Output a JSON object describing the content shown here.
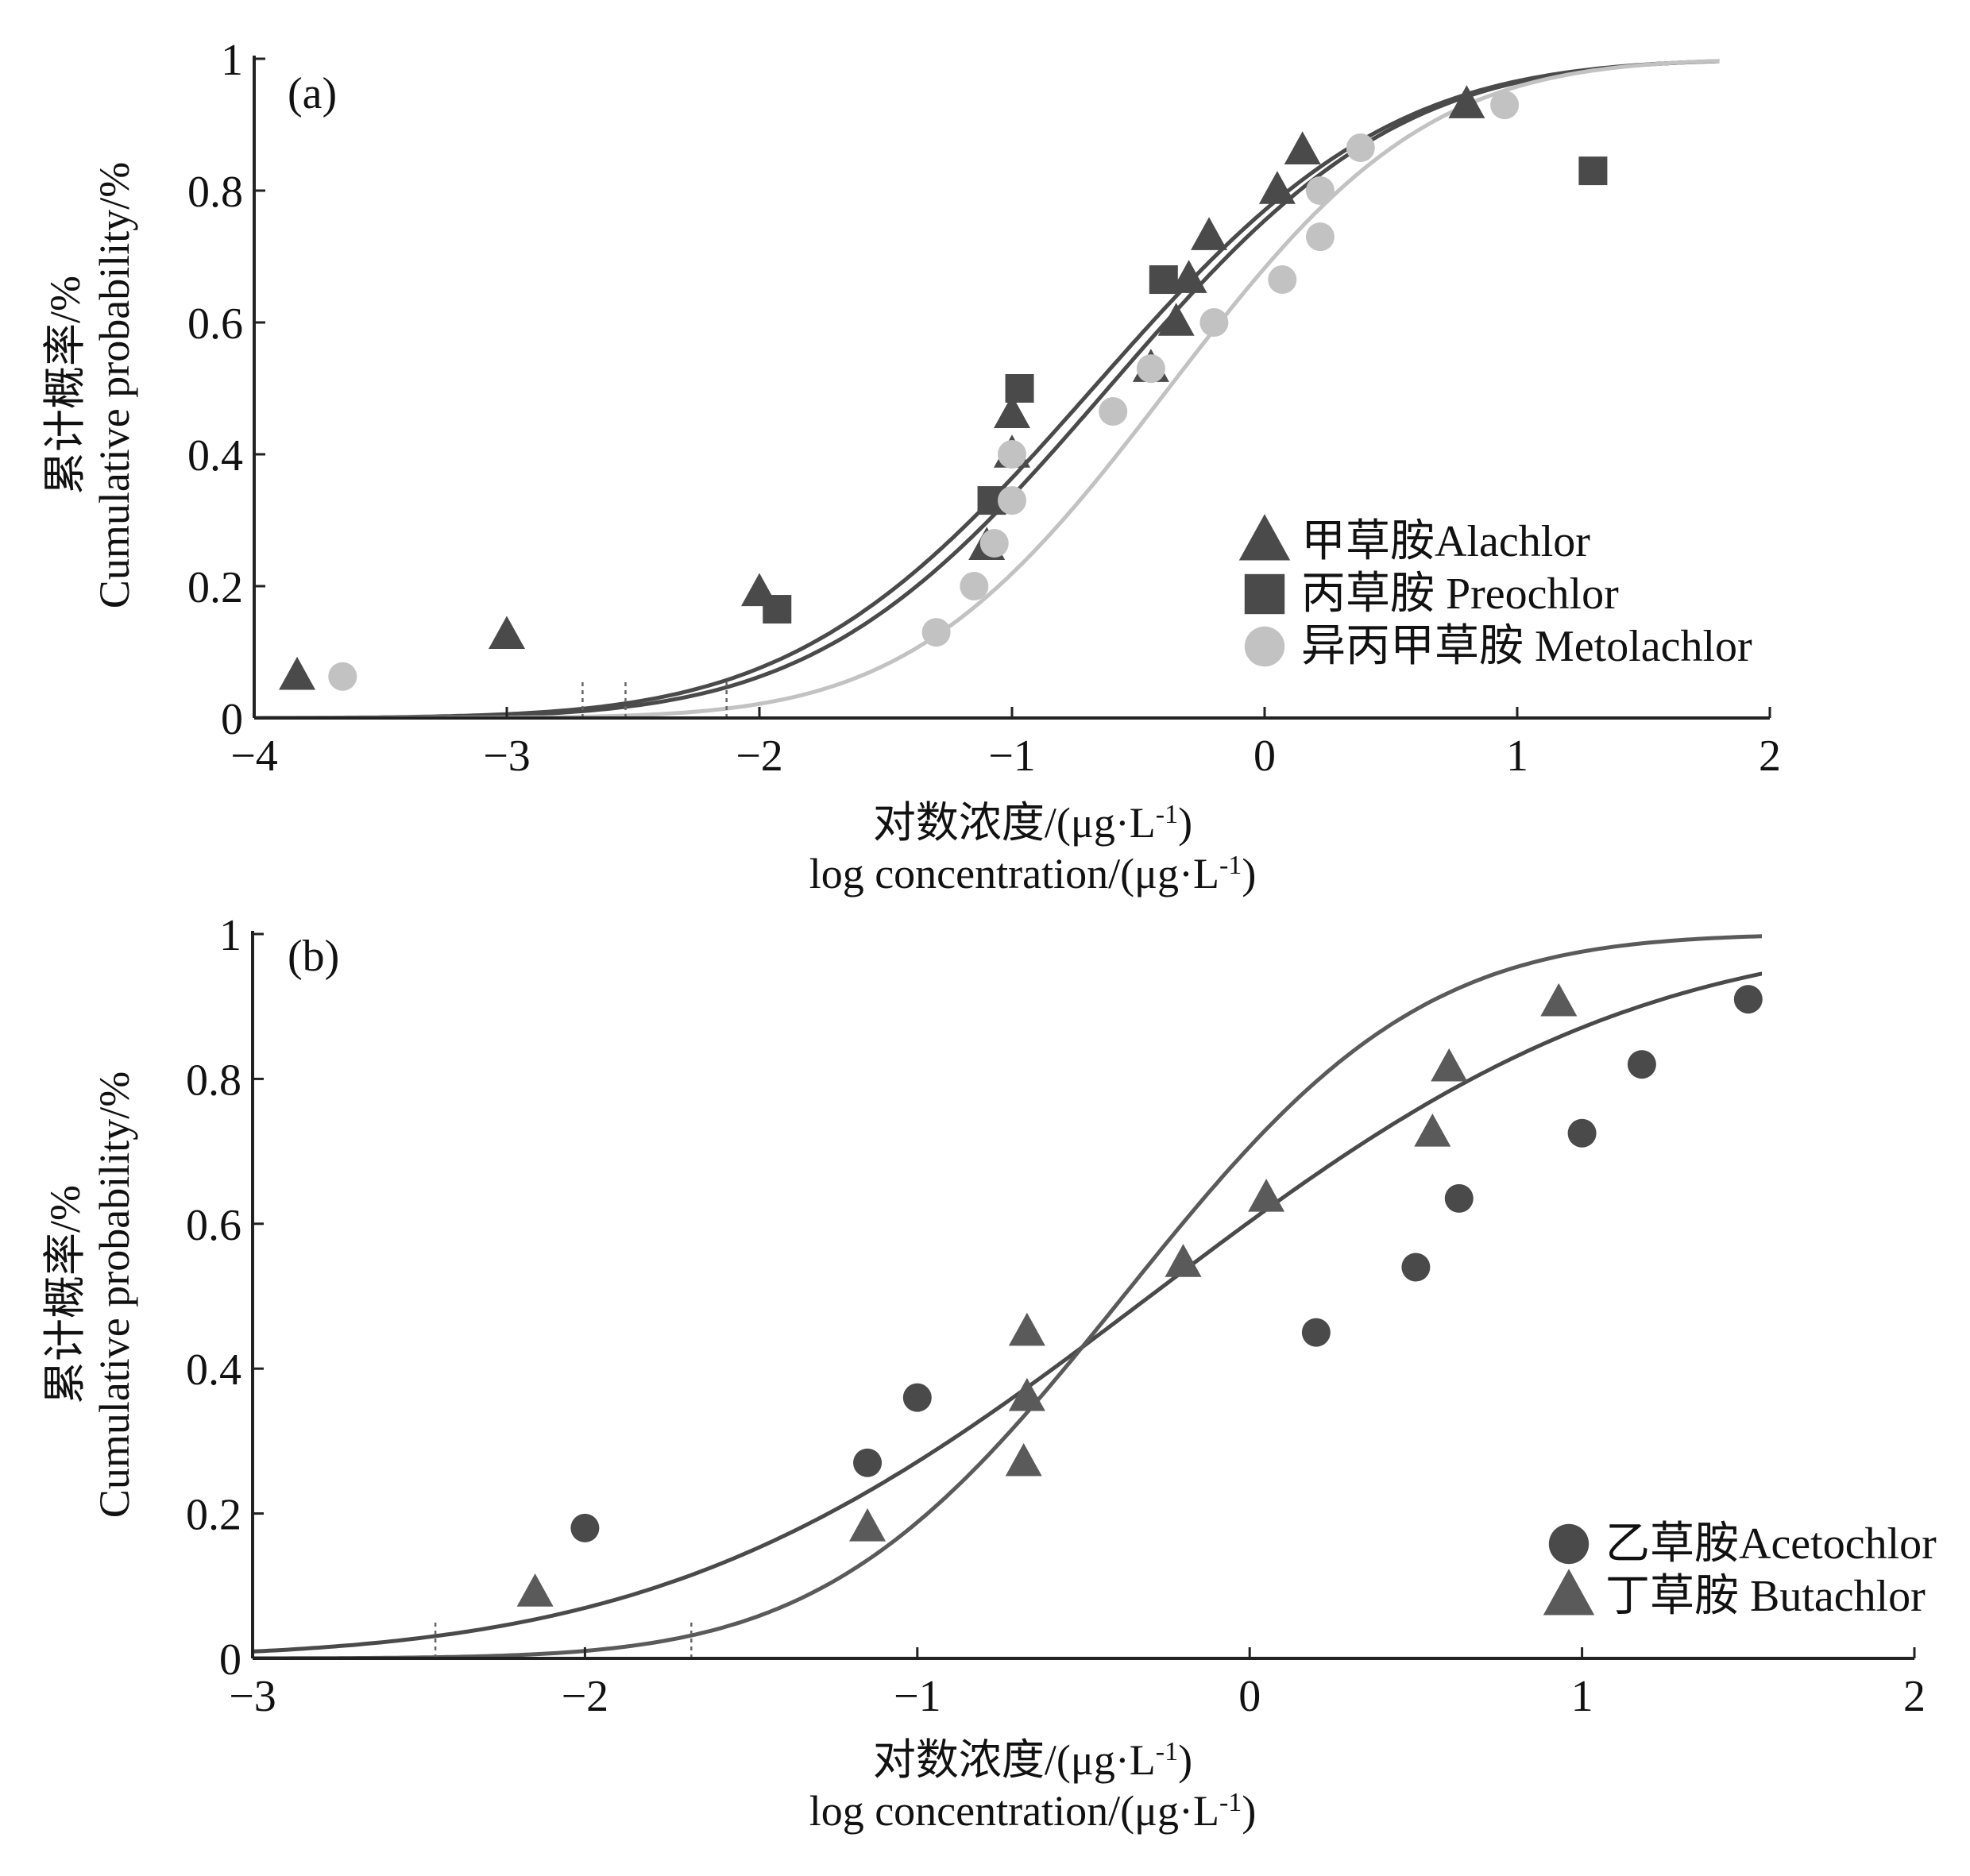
{
  "colors": {
    "dark": "#4a4a4a",
    "medium": "#5a5a5a",
    "light": "#c2c2c2",
    "axis": "#222222",
    "text": "#111111"
  },
  "chart_data": [
    {
      "panel_label": "(a)",
      "type": "scatter",
      "xlim": [
        -4,
        2
      ],
      "ylim": [
        0,
        1
      ],
      "x_ticks": [
        -4,
        -3,
        -2,
        -1,
        0,
        1,
        2
      ],
      "x_tick_labels": [
        "−4",
        "−3",
        "−2",
        "−1",
        "0",
        "1",
        "2"
      ],
      "y_ticks": [
        0,
        0.2,
        0.4,
        0.6,
        0.8,
        1
      ],
      "y_tick_labels": [
        "0",
        "0.2",
        "0.4",
        "0.6",
        "0.8",
        "1"
      ],
      "ylabel": [
        "累计概率/%",
        "Cumulative probability/%"
      ],
      "xlabel": [
        "对数浓度/(μg·L",
        "log concentration/(μg·L"
      ],
      "xlabel_sup": "-1",
      "xlabel_close": ")",
      "legend_position": "lower-right",
      "series": [
        {
          "name": "甲草胺Alachlor",
          "marker": "triangle",
          "color": "#4a4a4a",
          "points": [
            [
              -3.83,
              0.063
            ],
            [
              -3.0,
              0.125
            ],
            [
              -2.0,
              0.19
            ],
            [
              -1.1,
              0.26
            ],
            [
              -1.0,
              0.46
            ],
            [
              -1.0,
              0.4
            ],
            [
              -0.45,
              0.53
            ],
            [
              -0.35,
              0.6
            ],
            [
              -0.3,
              0.665
            ],
            [
              -0.22,
              0.73
            ],
            [
              0.05,
              0.8
            ],
            [
              0.15,
              0.86
            ],
            [
              0.8,
              0.93
            ]
          ],
          "fit": {
            "mu": -0.62,
            "sigma": 0.9
          }
        },
        {
          "name": "丙草胺 Preochlor",
          "marker": "square",
          "color": "#4a4a4a",
          "points": [
            [
              -1.93,
              0.165
            ],
            [
              -1.08,
              0.33
            ],
            [
              -0.97,
              0.5
            ],
            [
              -0.4,
              0.665
            ],
            [
              1.3,
              0.83
            ]
          ],
          "fit": {
            "mu": -0.68,
            "sigma": 0.92
          }
        },
        {
          "name": "异丙甲草胺 Metolachlor",
          "marker": "circle",
          "color": "#c2c2c2",
          "points": [
            [
              -3.65,
              0.063
            ],
            [
              -1.3,
              0.13
            ],
            [
              -1.15,
              0.2
            ],
            [
              -1.07,
              0.265
            ],
            [
              -1.0,
              0.33
            ],
            [
              -1.0,
              0.4
            ],
            [
              -0.6,
              0.465
            ],
            [
              -0.45,
              0.53
            ],
            [
              -0.2,
              0.6
            ],
            [
              0.07,
              0.665
            ],
            [
              0.22,
              0.73
            ],
            [
              0.22,
              0.8
            ],
            [
              0.38,
              0.865
            ],
            [
              0.95,
              0.93
            ]
          ],
          "fit": {
            "mu": -0.38,
            "sigma": 0.8
          }
        }
      ]
    },
    {
      "panel_label": "(b)",
      "type": "scatter",
      "xlim": [
        -3,
        2
      ],
      "ylim": [
        0,
        1
      ],
      "x_ticks": [
        -3,
        -2,
        -1,
        0,
        1,
        2
      ],
      "x_tick_labels": [
        "−3",
        "−2",
        "−1",
        "0",
        "1",
        "2"
      ],
      "y_ticks": [
        0,
        0.2,
        0.4,
        0.6,
        0.8,
        1
      ],
      "y_tick_labels": [
        "0",
        "0.2",
        "0.4",
        "0.6",
        "0.8",
        "1"
      ],
      "ylabel": [
        "累计概率/%",
        "Cumulative probability/%"
      ],
      "xlabel": [
        "对数浓度/(μg·L",
        "log concentration/(μg·L"
      ],
      "xlabel_sup": "-1",
      "xlabel_close": ")",
      "legend_position": "lower-right",
      "series": [
        {
          "name": "乙草胺Acetochlor",
          "marker": "circle",
          "color": "#4a4a4a",
          "points": [
            [
              -2.0,
              0.18
            ],
            [
              -1.15,
              0.27
            ],
            [
              -1.0,
              0.36
            ],
            [
              0.2,
              0.45
            ],
            [
              0.5,
              0.54
            ],
            [
              0.63,
              0.635
            ],
            [
              1.0,
              0.725
            ],
            [
              1.18,
              0.82
            ],
            [
              1.5,
              0.91
            ]
          ],
          "fit": {
            "mu": -0.3,
            "sigma": 1.15
          }
        },
        {
          "name": "丁草胺 Butachlor",
          "marker": "triangle",
          "color": "#5a5a5a",
          "points": [
            [
              -2.15,
              0.09
            ],
            [
              -1.15,
              0.18
            ],
            [
              -0.68,
              0.27
            ],
            [
              -0.67,
              0.36
            ],
            [
              -0.67,
              0.45
            ],
            [
              -0.2,
              0.545
            ],
            [
              0.05,
              0.635
            ],
            [
              0.55,
              0.725
            ],
            [
              0.6,
              0.815
            ],
            [
              0.93,
              0.905
            ]
          ],
          "fit": {
            "mu": -0.38,
            "sigma": 0.7
          }
        }
      ]
    }
  ]
}
